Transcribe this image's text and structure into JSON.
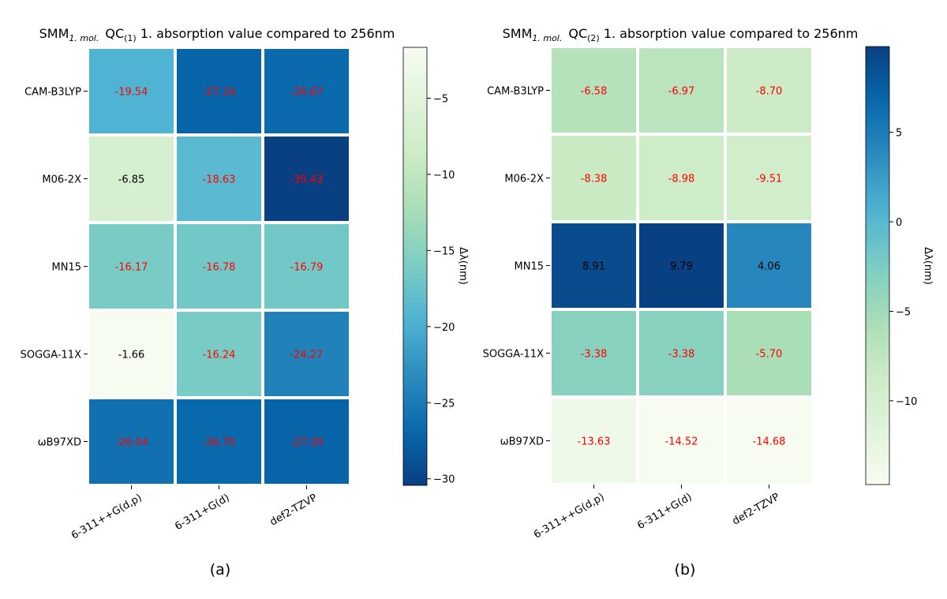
{
  "chart_data": [
    {
      "type": "heatmap",
      "title_main": "SMM",
      "title_sub": "1. mol.",
      "title_qc": "QC",
      "title_qc_sub": "(1)",
      "title_rest": " 1. absorption value compared to 256nm",
      "caption": "(a)",
      "rows": [
        "CAM-B3LYP",
        "M06-2X",
        "MN15",
        "SOGGA-11X",
        "ωB97XD"
      ],
      "columns": [
        "6-311++G(d,p)",
        "6-311+G(d)",
        "def2-TZVP"
      ],
      "values": [
        [
          -19.54,
          -27.16,
          -26.67
        ],
        [
          -6.85,
          -18.63,
          -30.43
        ],
        [
          -16.17,
          -16.78,
          -16.79
        ],
        [
          -1.66,
          -16.24,
          -24.27
        ],
        [
          -26.04,
          -26.7,
          -27.2
        ]
      ],
      "colorbar": {
        "label": "Δλ(nm)",
        "min": -30.43,
        "max": -1.66,
        "colormap": "GnBu",
        "reversed": true,
        "ticks": [
          -30,
          -25,
          -20,
          -15,
          -10,
          -5
        ]
      },
      "label_threshold": -15,
      "dark_label_color": "#ff0000",
      "light_label_color": "#000000"
    },
    {
      "type": "heatmap",
      "title_main": "SMM",
      "title_sub": "1. mol.",
      "title_qc": "QC",
      "title_qc_sub": "(2)",
      "title_rest": " 1. absorption value compared to 256nm",
      "caption": "(b)",
      "rows": [
        "CAM-B3LYP",
        "M06-2X",
        "MN15",
        "SOGGA-11X",
        "ωB97XD"
      ],
      "columns": [
        "6-311++G(d,p)",
        "6-311+G(d)",
        "def2-TZVP"
      ],
      "values": [
        [
          -6.58,
          -6.97,
          -8.7
        ],
        [
          -8.38,
          -8.98,
          -9.51
        ],
        [
          8.91,
          9.79,
          4.06
        ],
        [
          -3.38,
          -3.38,
          -5.7
        ],
        [
          -13.63,
          -14.52,
          -14.68
        ]
      ],
      "colorbar": {
        "label": "Δλ(nm)",
        "min": -14.68,
        "max": 9.79,
        "colormap": "GnBu",
        "reversed": false,
        "ticks": [
          -10,
          -5,
          0,
          5
        ]
      },
      "label_threshold": 0,
      "dark_label_color": "#ff0000",
      "light_label_color": "#000000"
    }
  ]
}
